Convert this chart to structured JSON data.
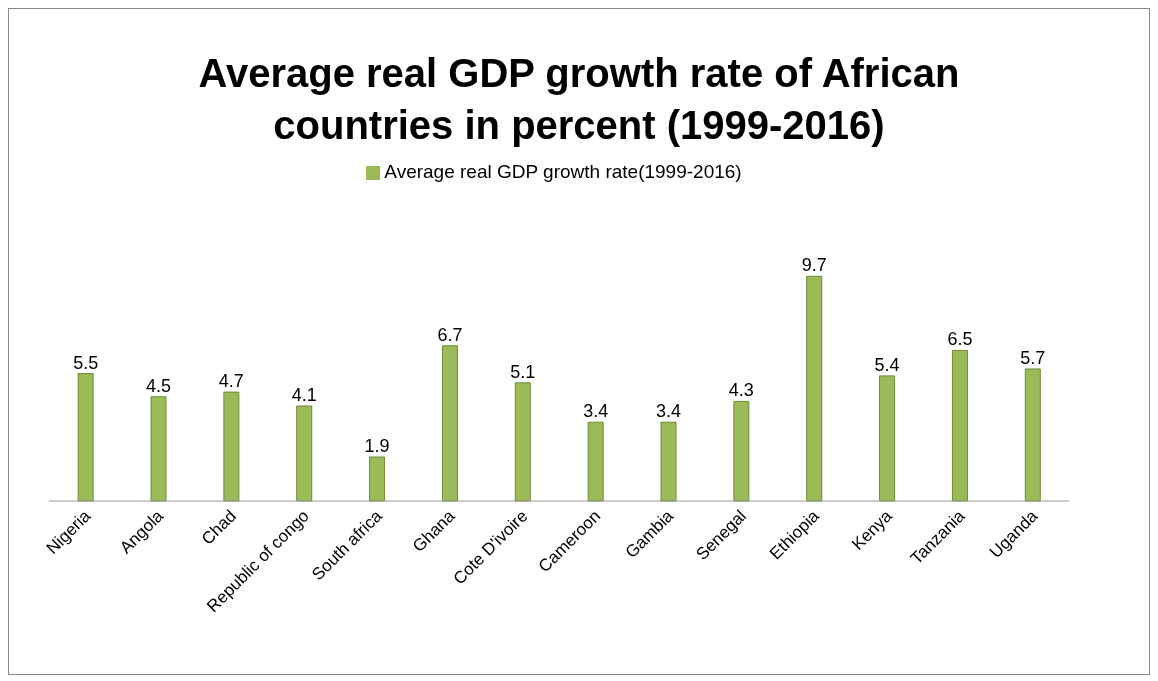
{
  "chart_data": {
    "type": "bar",
    "title": "Average real GDP growth rate of African countries in percent (1999-2016)",
    "categories": [
      "Nigeria",
      "Angola",
      "Chad",
      "Republic of congo",
      "South africa",
      "Ghana",
      "Cote D'ivoire",
      "Cameroon",
      "Gambia",
      "Senegal",
      "Ethiopia",
      "Kenya",
      "Tanzania",
      "Uganda"
    ],
    "series": [
      {
        "name": "Average real GDP growth rate(1999-2016)",
        "color": "#9bbb59",
        "values": [
          5.5,
          4.5,
          4.7,
          4.1,
          1.9,
          6.7,
          5.1,
          3.4,
          3.4,
          4.3,
          9.7,
          5.4,
          6.5,
          5.7
        ]
      }
    ],
    "data_labels": true,
    "legend": "top",
    "tick_labels": "x",
    "grid": false
  }
}
